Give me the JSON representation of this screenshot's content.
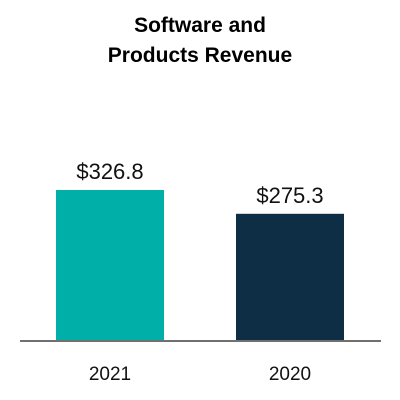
{
  "chart_data": {
    "type": "bar",
    "title_lines": [
      "Software and",
      "Products Revenue"
    ],
    "categories": [
      "2021",
      "2020"
    ],
    "values": [
      326.8,
      275.3
    ],
    "value_labels": [
      "$326.8",
      "$275.3"
    ],
    "colors": [
      "#00B0A8",
      "#0D2E45"
    ],
    "axis_color": "#707070",
    "xlabel": "",
    "ylabel": "",
    "ylim": [
      0,
      450
    ],
    "grid": false,
    "legend": "none"
  }
}
